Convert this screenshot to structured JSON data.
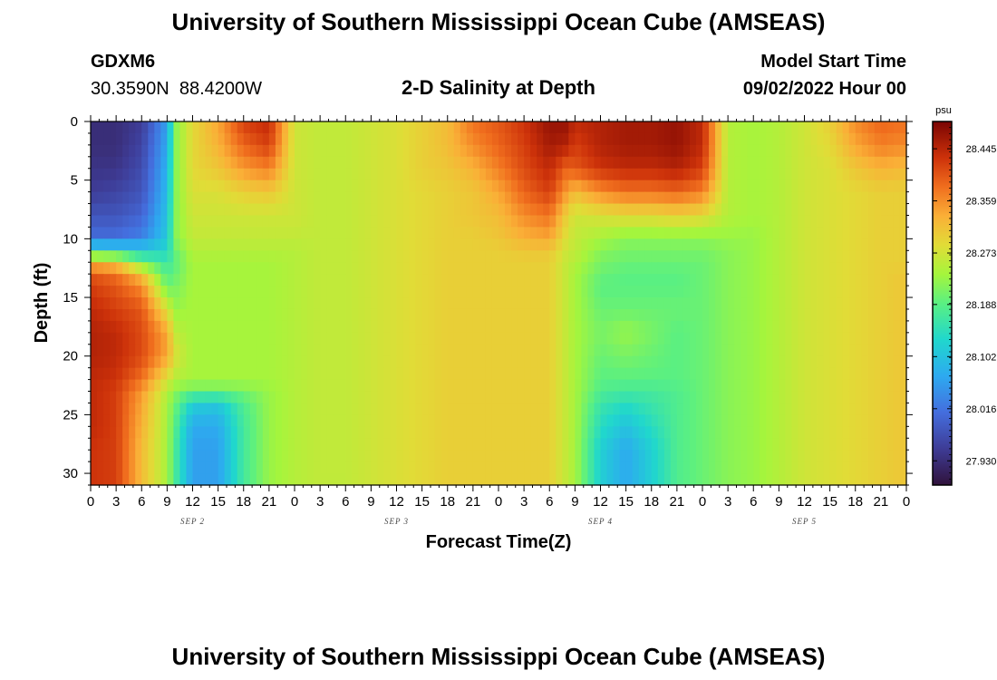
{
  "page": {
    "title": "University of Southern Mississippi Ocean Cube (AMSEAS)",
    "title_repeat": "University of Southern Mississippi Ocean Cube (AMSEAS)"
  },
  "header": {
    "station_id": "GDXM6",
    "coordinates": "30.3590N  88.4200W",
    "plot_title": "2-D Salinity at Depth",
    "model_label": "Model Start Time",
    "model_start": "09/02/2022 Hour 00"
  },
  "chart_data": {
    "type": "heatmap",
    "title": "2-D Salinity at Depth",
    "xlabel": "Forecast Time(Z)",
    "ylabel": "Depth (ft)",
    "x_ticks": [
      "0",
      "3",
      "6",
      "9",
      "12",
      "15",
      "18",
      "21",
      "0",
      "3",
      "6",
      "9",
      "12",
      "15",
      "18",
      "21",
      "0",
      "3",
      "6",
      "9",
      "12",
      "15",
      "18",
      "21",
      "0",
      "3",
      "6",
      "9",
      "12",
      "15",
      "18",
      "21",
      "0"
    ],
    "x_range_hours": [
      0,
      96
    ],
    "day_labels": [
      {
        "label": "SEP 2",
        "hour": 12
      },
      {
        "label": "SEP 3",
        "hour": 36
      },
      {
        "label": "SEP 4",
        "hour": 60
      },
      {
        "label": "SEP 5",
        "hour": 84
      }
    ],
    "y_ticks": [
      "0",
      "5",
      "10",
      "15",
      "20",
      "25",
      "30"
    ],
    "y_range_ft": [
      0,
      31
    ],
    "colorbar": {
      "unit": "psu",
      "ticks": [
        "28.445",
        "28.359",
        "28.273",
        "28.188",
        "28.102",
        "28.016",
        "27.930"
      ],
      "vmin": 27.89,
      "vmax": 28.49
    },
    "depths_ft": [
      0,
      2,
      4,
      6,
      8,
      10,
      11,
      12,
      13,
      14,
      16,
      18,
      20,
      22,
      23,
      24,
      26,
      28,
      31
    ],
    "times_h": [
      0,
      3,
      6,
      9,
      10,
      12,
      15,
      18,
      21,
      24,
      27,
      30,
      33,
      36,
      39,
      42,
      45,
      48,
      51,
      54,
      56,
      57,
      60,
      63,
      66,
      69,
      72,
      75,
      78,
      81,
      84,
      87,
      90,
      93,
      96
    ],
    "salinity_psu": [
      [
        27.93,
        27.93,
        27.95,
        28.06,
        28.22,
        28.29,
        28.34,
        28.42,
        28.44,
        28.27,
        28.26,
        28.26,
        28.27,
        28.28,
        28.3,
        28.32,
        28.38,
        28.4,
        28.43,
        28.47,
        28.47,
        28.44,
        28.45,
        28.46,
        28.46,
        28.47,
        28.44,
        28.25,
        28.24,
        28.25,
        28.27,
        28.3,
        28.36,
        28.39,
        28.38
      ],
      [
        27.93,
        27.93,
        27.96,
        28.07,
        28.22,
        28.29,
        28.33,
        28.39,
        28.42,
        28.27,
        28.26,
        28.26,
        28.27,
        28.28,
        28.3,
        28.32,
        28.36,
        28.39,
        28.42,
        28.46,
        28.45,
        28.42,
        28.45,
        28.46,
        28.46,
        28.47,
        28.44,
        28.25,
        28.24,
        28.25,
        28.27,
        28.29,
        28.34,
        28.37,
        28.36
      ],
      [
        27.94,
        27.94,
        27.97,
        28.08,
        28.22,
        28.29,
        28.31,
        28.35,
        28.37,
        28.27,
        28.26,
        28.26,
        28.27,
        28.28,
        28.3,
        28.31,
        28.33,
        28.37,
        28.41,
        28.44,
        28.39,
        28.4,
        28.43,
        28.44,
        28.44,
        28.45,
        28.42,
        28.25,
        28.24,
        28.25,
        28.27,
        28.28,
        28.31,
        28.33,
        28.32
      ],
      [
        27.95,
        27.96,
        27.98,
        28.09,
        28.22,
        28.28,
        28.28,
        28.3,
        28.31,
        28.27,
        28.26,
        28.26,
        28.27,
        28.28,
        28.29,
        28.3,
        28.31,
        28.34,
        28.39,
        28.42,
        28.35,
        28.32,
        28.36,
        28.38,
        28.38,
        28.39,
        28.37,
        28.25,
        28.24,
        28.25,
        28.27,
        28.28,
        28.29,
        28.3,
        28.3
      ],
      [
        27.98,
        27.98,
        28.0,
        28.1,
        28.22,
        28.27,
        28.27,
        28.27,
        28.27,
        28.27,
        28.26,
        28.26,
        28.27,
        28.28,
        28.29,
        28.3,
        28.31,
        28.32,
        28.36,
        28.38,
        28.3,
        28.27,
        28.28,
        28.29,
        28.29,
        28.3,
        28.29,
        28.25,
        28.24,
        28.25,
        28.27,
        28.28,
        28.29,
        28.3,
        28.3
      ],
      [
        28.01,
        28.01,
        28.03,
        28.11,
        28.22,
        28.26,
        28.26,
        28.26,
        28.26,
        28.26,
        28.26,
        28.26,
        28.27,
        28.28,
        28.29,
        28.3,
        28.3,
        28.31,
        28.33,
        28.34,
        28.28,
        28.26,
        28.24,
        28.22,
        28.22,
        28.22,
        28.22,
        28.23,
        28.23,
        28.25,
        28.27,
        28.28,
        28.29,
        28.3,
        28.3
      ],
      [
        28.15,
        28.14,
        28.12,
        28.13,
        28.2,
        28.25,
        28.25,
        28.25,
        28.25,
        28.25,
        28.26,
        28.26,
        28.27,
        28.28,
        28.29,
        28.3,
        28.3,
        28.3,
        28.31,
        28.31,
        28.27,
        28.26,
        28.22,
        28.21,
        28.21,
        28.21,
        28.21,
        28.22,
        28.23,
        28.25,
        28.27,
        28.28,
        28.29,
        28.3,
        28.3
      ],
      [
        28.32,
        28.3,
        28.2,
        28.16,
        28.19,
        28.24,
        28.24,
        28.24,
        28.24,
        28.25,
        28.26,
        28.26,
        28.27,
        28.28,
        28.29,
        28.3,
        28.3,
        28.3,
        28.3,
        28.3,
        28.26,
        28.25,
        28.21,
        28.2,
        28.2,
        28.2,
        28.2,
        28.22,
        28.23,
        28.25,
        28.27,
        28.28,
        28.29,
        28.3,
        28.3
      ],
      [
        28.4,
        28.38,
        28.31,
        28.18,
        28.2,
        28.24,
        28.24,
        28.24,
        28.24,
        28.25,
        28.26,
        28.26,
        28.27,
        28.28,
        28.29,
        28.3,
        28.3,
        28.3,
        28.3,
        28.3,
        28.26,
        28.24,
        28.2,
        28.19,
        28.19,
        28.19,
        28.2,
        28.22,
        28.23,
        28.25,
        28.27,
        28.28,
        28.29,
        28.3,
        28.31
      ],
      [
        28.42,
        28.4,
        28.36,
        28.2,
        28.21,
        28.24,
        28.24,
        28.24,
        28.24,
        28.25,
        28.26,
        28.26,
        28.27,
        28.28,
        28.29,
        28.3,
        28.3,
        28.3,
        28.3,
        28.3,
        28.26,
        28.24,
        28.19,
        28.19,
        28.19,
        28.19,
        28.2,
        28.22,
        28.23,
        28.25,
        28.27,
        28.28,
        28.29,
        28.3,
        28.31
      ],
      [
        28.44,
        28.42,
        28.4,
        28.28,
        28.23,
        28.24,
        28.24,
        28.24,
        28.24,
        28.25,
        28.26,
        28.26,
        28.27,
        28.28,
        28.29,
        28.3,
        28.3,
        28.3,
        28.3,
        28.3,
        28.26,
        28.24,
        28.2,
        28.2,
        28.2,
        28.2,
        28.2,
        28.22,
        28.23,
        28.25,
        28.27,
        28.28,
        28.29,
        28.3,
        28.31
      ],
      [
        28.45,
        28.44,
        28.41,
        28.34,
        28.26,
        28.24,
        28.24,
        28.24,
        28.24,
        28.25,
        28.26,
        28.26,
        28.27,
        28.28,
        28.29,
        28.3,
        28.3,
        28.3,
        28.3,
        28.3,
        28.26,
        28.24,
        28.21,
        28.23,
        28.21,
        28.19,
        28.2,
        28.22,
        28.23,
        28.25,
        28.27,
        28.28,
        28.29,
        28.3,
        28.31
      ],
      [
        28.45,
        28.44,
        28.41,
        28.34,
        28.28,
        28.24,
        28.24,
        28.24,
        28.24,
        28.25,
        28.26,
        28.26,
        28.27,
        28.28,
        28.29,
        28.3,
        28.3,
        28.3,
        28.3,
        28.3,
        28.26,
        28.24,
        28.2,
        28.21,
        28.2,
        28.19,
        28.2,
        28.22,
        28.23,
        28.25,
        28.27,
        28.28,
        28.29,
        28.3,
        28.31
      ],
      [
        28.44,
        28.43,
        28.38,
        28.28,
        28.25,
        28.24,
        28.24,
        28.24,
        28.24,
        28.25,
        28.26,
        28.26,
        28.27,
        28.28,
        28.29,
        28.3,
        28.3,
        28.3,
        28.3,
        28.3,
        28.26,
        28.24,
        28.19,
        28.19,
        28.19,
        28.19,
        28.2,
        28.22,
        28.23,
        28.25,
        28.27,
        28.28,
        28.29,
        28.3,
        28.31
      ],
      [
        28.44,
        28.42,
        28.35,
        28.25,
        28.22,
        28.2,
        28.2,
        28.21,
        28.23,
        28.25,
        28.26,
        28.26,
        28.27,
        28.28,
        28.29,
        28.3,
        28.3,
        28.3,
        28.3,
        28.3,
        28.26,
        28.24,
        28.18,
        28.17,
        28.17,
        28.18,
        28.2,
        28.22,
        28.23,
        28.25,
        28.27,
        28.28,
        28.29,
        28.3,
        28.31
      ],
      [
        28.44,
        28.42,
        28.34,
        28.24,
        28.2,
        28.12,
        28.11,
        28.18,
        28.23,
        28.25,
        28.26,
        28.26,
        28.27,
        28.28,
        28.29,
        28.3,
        28.3,
        28.3,
        28.3,
        28.3,
        28.26,
        28.24,
        28.16,
        28.14,
        28.16,
        28.18,
        28.2,
        28.22,
        28.23,
        28.25,
        28.27,
        28.28,
        28.29,
        28.3,
        28.31
      ],
      [
        28.44,
        28.42,
        28.33,
        28.24,
        28.18,
        28.07,
        28.07,
        28.17,
        28.23,
        28.25,
        28.26,
        28.26,
        28.27,
        28.28,
        28.29,
        28.3,
        28.3,
        28.3,
        28.3,
        28.3,
        28.26,
        28.24,
        28.14,
        28.1,
        28.14,
        28.18,
        28.2,
        28.22,
        28.23,
        28.25,
        28.27,
        28.28,
        28.29,
        28.3,
        28.31
      ],
      [
        28.43,
        28.42,
        28.32,
        28.24,
        28.17,
        28.06,
        28.06,
        28.17,
        28.23,
        28.25,
        28.26,
        28.26,
        28.27,
        28.28,
        28.29,
        28.3,
        28.3,
        28.3,
        28.3,
        28.3,
        28.26,
        28.24,
        28.12,
        28.07,
        28.12,
        28.18,
        28.2,
        28.22,
        28.23,
        28.25,
        28.27,
        28.28,
        28.29,
        28.3,
        28.31
      ],
      [
        28.43,
        28.42,
        28.32,
        28.24,
        28.17,
        28.06,
        28.06,
        28.17,
        28.23,
        28.25,
        28.26,
        28.26,
        28.27,
        28.28,
        28.29,
        28.3,
        28.3,
        28.3,
        28.3,
        28.3,
        28.26,
        28.24,
        28.12,
        28.07,
        28.12,
        28.18,
        28.2,
        28.22,
        28.23,
        28.25,
        28.27,
        28.28,
        28.29,
        28.3,
        28.31
      ]
    ]
  }
}
